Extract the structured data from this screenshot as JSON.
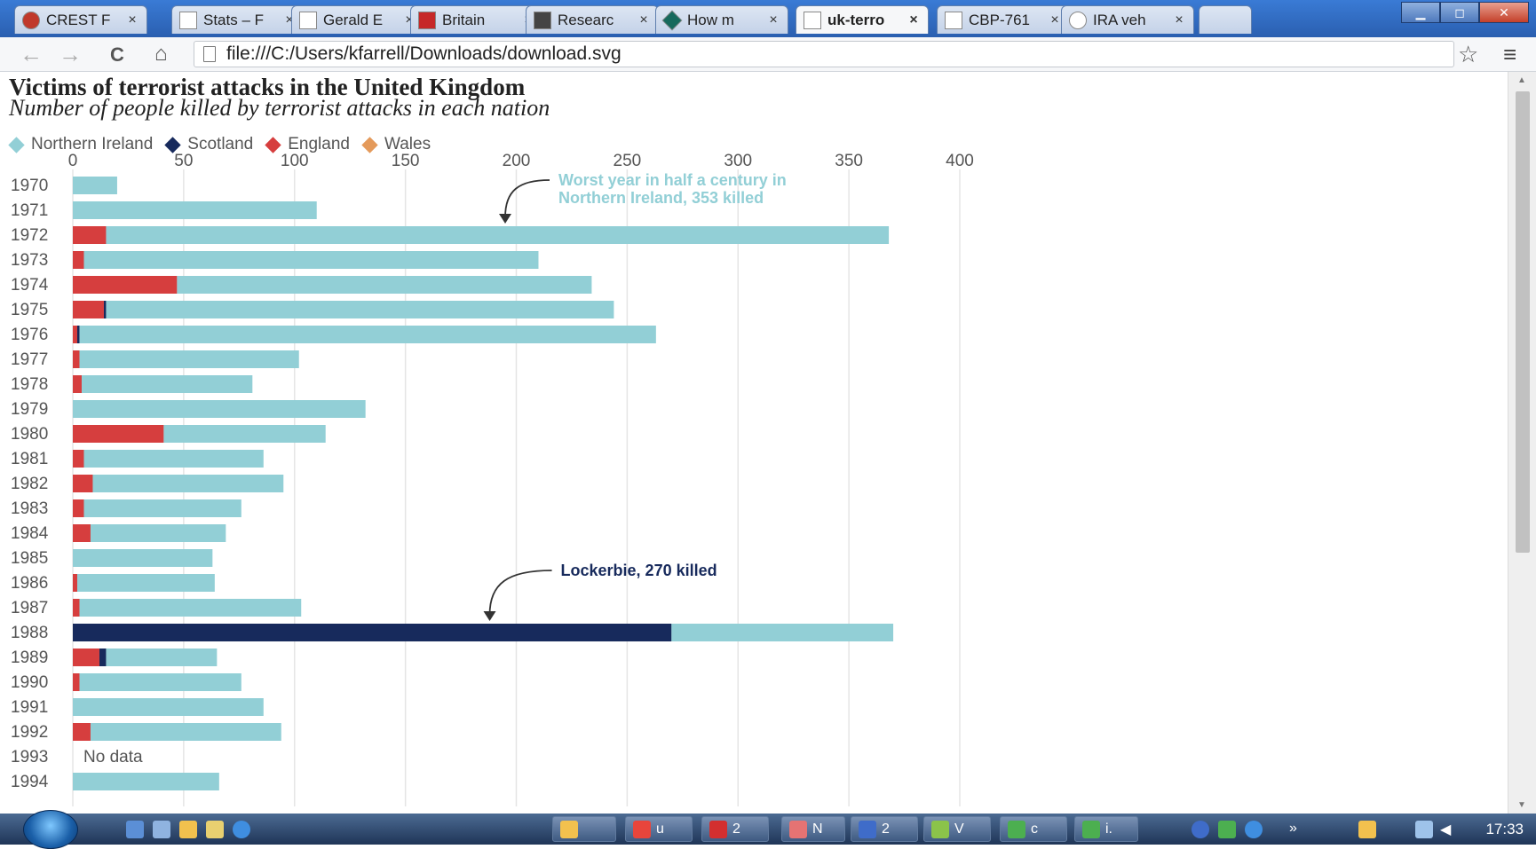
{
  "browser": {
    "tabs": [
      {
        "title": "CREST F",
        "icon": "crest-red-icon",
        "color": "#c0392b",
        "active": false
      },
      {
        "title": "Stats – F",
        "icon": "page-icon",
        "color": "#ffffff",
        "active": false
      },
      {
        "title": "Gerald E",
        "icon": "wikipedia-icon",
        "color": "#ffffff",
        "active": false
      },
      {
        "title": "Britain",
        "icon": "red-square-icon",
        "color": "#c62828",
        "active": false
      },
      {
        "title": "Researc",
        "icon": "building-icon",
        "color": "#444444",
        "active": false
      },
      {
        "title": "How m",
        "icon": "diamond-icon",
        "color": "#16695c",
        "active": false
      },
      {
        "title": "uk-terro",
        "icon": "page-icon",
        "color": "#ffffff",
        "active": true
      },
      {
        "title": "CBP-761",
        "icon": "page-icon",
        "color": "#ffffff",
        "active": false
      },
      {
        "title": "IRA veh",
        "icon": "google-icon",
        "color": "#ffffff",
        "active": false
      }
    ],
    "tab_close_glyph": "×",
    "url": "file:///C:/Users/kfarrell/Downloads/download.svg",
    "nav": {
      "back": "←",
      "forward": "→",
      "reload": "C",
      "home": "⌂",
      "star": "☆",
      "menu": "≡"
    },
    "window_controls": {
      "minimize": "▁",
      "maximize": "◻",
      "close": "✕"
    }
  },
  "chart_header": {
    "title": "Victims of terrorist attacks in the United Kingdom",
    "subtitle": "Number of people killed by terrorist attacks in each nation"
  },
  "legend": [
    {
      "label": "Northern Ireland",
      "color": "#92cfd6"
    },
    {
      "label": "Scotland",
      "color": "#172a5c"
    },
    {
      "label": "England",
      "color": "#d63e3e"
    },
    {
      "label": "Wales",
      "color": "#e49a5b"
    }
  ],
  "chart_data": {
    "type": "bar",
    "orientation": "horizontal",
    "stacked": true,
    "title": "Victims of terrorist attacks in the United Kingdom",
    "subtitle": "Number of people killed by terrorist attacks in each nation",
    "x_ticks": [
      0,
      50,
      100,
      150,
      200,
      250,
      300,
      350,
      400
    ],
    "xlim": [
      0,
      400
    ],
    "grid": true,
    "categories": [
      "1970",
      "1971",
      "1972",
      "1973",
      "1974",
      "1975",
      "1976",
      "1977",
      "1978",
      "1979",
      "1980",
      "1981",
      "1982",
      "1983",
      "1984",
      "1985",
      "1986",
      "1987",
      "1988",
      "1989",
      "1990",
      "1991",
      "1992",
      "1993",
      "1994"
    ],
    "series": [
      {
        "name": "England",
        "color": "#d63e3e",
        "values": [
          0,
          0,
          15,
          5,
          47,
          14,
          2,
          3,
          4,
          0,
          41,
          5,
          9,
          5,
          8,
          0,
          2,
          3,
          0,
          12,
          3,
          0,
          8,
          0,
          0
        ]
      },
      {
        "name": "Scotland",
        "color": "#172a5c",
        "values": [
          0,
          0,
          0,
          0,
          0,
          1,
          1,
          0,
          0,
          0,
          0,
          0,
          0,
          0,
          0,
          0,
          0,
          0,
          270,
          3,
          0,
          0,
          0,
          0,
          0
        ]
      },
      {
        "name": "Northern Ireland",
        "color": "#92cfd6",
        "values": [
          20,
          110,
          353,
          205,
          187,
          229,
          260,
          99,
          77,
          132,
          73,
          81,
          86,
          71,
          61,
          63,
          62,
          100,
          100,
          50,
          73,
          86,
          86,
          0,
          66
        ]
      },
      {
        "name": "Wales",
        "color": "#e49a5b",
        "values": [
          0,
          0,
          0,
          0,
          0,
          0,
          0,
          0,
          0,
          0,
          0,
          0,
          0,
          0,
          0,
          0,
          0,
          0,
          0,
          0,
          0,
          0,
          0,
          0,
          0
        ]
      }
    ],
    "no_data_note": {
      "category": "1993",
      "text": "No data"
    },
    "annotations": [
      {
        "text_lines": [
          "Worst year in half a century in",
          "Northern Ireland, 353 killed"
        ],
        "color": "#92cfd6",
        "target_category": "1972",
        "target_value": 195
      },
      {
        "text_lines": [
          "Lockerbie, 270 killed"
        ],
        "color": "#172a5c",
        "target_category": "1988",
        "target_value": 188
      }
    ]
  },
  "taskbar": {
    "buttons": [
      {
        "label": "",
        "icon": "mail-icon",
        "color": "#f2c14e"
      },
      {
        "label": "u",
        "icon": "chrome-icon",
        "color": "#e8453c"
      },
      {
        "label": "2",
        "icon": "pdf-icon",
        "color": "#d32f2f"
      },
      {
        "label": "N",
        "icon": "app-icon",
        "color": "#e57373"
      },
      {
        "label": "2",
        "icon": "word-icon",
        "color": "#3f6cc9"
      },
      {
        "label": "V",
        "icon": "project-icon",
        "color": "#8bc34a"
      },
      {
        "label": "c",
        "icon": "excel-icon",
        "color": "#4caf50"
      },
      {
        "label": "i.",
        "icon": "excel-icon",
        "color": "#4caf50"
      }
    ],
    "clock": "17:33"
  }
}
